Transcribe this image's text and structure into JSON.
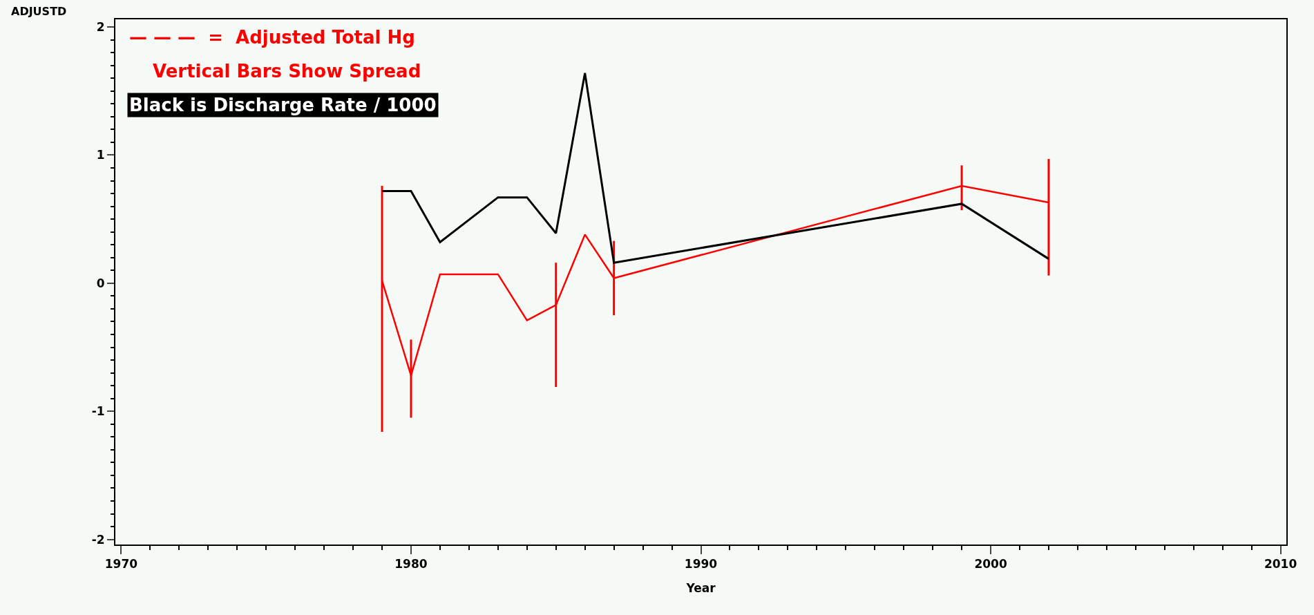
{
  "chart_data": {
    "type": "line",
    "xlabel": "Year",
    "ylabel": "ADJUSTD",
    "x": [
      1979,
      1980,
      1981,
      1983,
      1984,
      1985,
      1986,
      1987,
      1999,
      2002
    ],
    "series": [
      {
        "color": "#ff0000",
        "values": [
          0.02,
          -0.72,
          0.07,
          0.07,
          -0.29,
          -0.17,
          0.38,
          0.04,
          0.76,
          0.63
        ],
        "errors": [
          [
            -1.16,
            0.76
          ],
          [
            -1.05,
            -0.44
          ],
          null,
          null,
          null,
          [
            -0.81,
            0.16
          ],
          null,
          [
            -0.25,
            0.33
          ],
          [
            0.57,
            0.92
          ],
          [
            0.06,
            0.97
          ]
        ]
      },
      {
        "color": "#000000",
        "values": [
          0.72,
          0.72,
          0.32,
          0.67,
          0.67,
          0.39,
          1.64,
          0.16,
          0.62,
          0.19
        ]
      }
    ],
    "annotations": [
      "— — —  =  Adjusted Total Hg",
      "Vertical Bars Show Spread",
      "Black is Discharge Rate / 1000"
    ],
    "xlim": [
      1969.8,
      2010.2
    ],
    "xticks": [
      1970,
      1980,
      1990,
      2000,
      2010
    ],
    "ylim": [
      -2.04,
      2.06
    ],
    "yticks": [
      -2,
      -1,
      0,
      1,
      2
    ],
    "grid": false,
    "marker": "none",
    "line_style": "solid"
  }
}
